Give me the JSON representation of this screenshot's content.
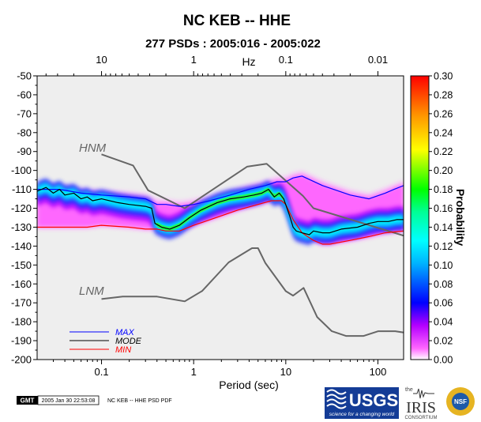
{
  "chart_data": {
    "type": "heatmap",
    "title": "NC KEB -- HHE",
    "subtitle": "277 PSDs : 2005:016 - 2005:022",
    "xlabel": "Period (sec)",
    "x_top_unit": "Hz",
    "ylabel": "",
    "colorbar_label": "Probability",
    "x_scale": "log",
    "xlim": [
      0.02,
      190
    ],
    "ylim": [
      -200,
      -50
    ],
    "x_ticks": [
      0.1,
      1,
      10,
      100
    ],
    "x_tick_labels": [
      "0.1",
      "1",
      "10",
      "100"
    ],
    "x_top_ticks": [
      10,
      1,
      0.1,
      0.01
    ],
    "x_top_tick_labels": [
      "10",
      "1",
      "0.1",
      "0.01"
    ],
    "y_ticks": [
      -50,
      -60,
      -70,
      -80,
      -90,
      -100,
      -110,
      -120,
      -130,
      -140,
      -150,
      -160,
      -170,
      -180,
      -190,
      -200
    ],
    "y_tick_labels": [
      "-50",
      "-60",
      "-70",
      "-80",
      "-90",
      "-100",
      "-110",
      "-120",
      "-130",
      "-140",
      "-150",
      "-160",
      "-170",
      "-180",
      "-190",
      "-200"
    ],
    "colorbar_range": [
      0,
      0.3
    ],
    "colorbar_ticks": [
      0.0,
      0.02,
      0.04,
      0.06,
      0.08,
      0.1,
      0.12,
      0.14,
      0.16,
      0.18,
      0.2,
      0.22,
      0.24,
      0.26,
      0.28,
      0.3
    ],
    "colorbar_tick_labels": [
      "0.00",
      "0.02",
      "0.04",
      "0.06",
      "0.08",
      "0.10",
      "0.12",
      "0.14",
      "0.16",
      "0.18",
      "0.20",
      "0.22",
      "0.24",
      "0.26",
      "0.28",
      "0.30"
    ],
    "colors": {
      "max": "#0000ff",
      "mode": "#000000",
      "min": "#ff0000",
      "noise_models": "#666666",
      "background": "#eeeeee"
    },
    "legend": {
      "placement": "bottom-left",
      "entries": [
        "MAX",
        "MODE",
        "MIN"
      ]
    },
    "reference_labels": {
      "hnm": "HNM",
      "lnm": "LNM"
    },
    "series": [
      {
        "name": "MAX",
        "x": [
          0.02,
          0.035,
          0.06,
          0.1,
          0.2,
          0.3,
          0.4,
          0.5,
          0.7,
          1,
          1.5,
          2.5,
          4,
          6,
          8,
          10,
          12,
          15,
          25,
          50,
          80,
          120,
          150,
          190
        ],
        "y": [
          -110,
          -110,
          -112,
          -113,
          -114,
          -115,
          -118,
          -118,
          -119,
          -118,
          -116,
          -113,
          -110,
          -108,
          -106,
          -106,
          -104,
          -103,
          -108,
          -113,
          -115,
          -112,
          -110,
          -108
        ]
      },
      {
        "name": "MODE",
        "x": [
          0.02,
          0.025,
          0.03,
          0.035,
          0.04,
          0.05,
          0.06,
          0.07,
          0.08,
          0.1,
          0.15,
          0.2,
          0.3,
          0.35,
          0.38,
          0.45,
          0.55,
          0.7,
          0.9,
          1.2,
          1.8,
          2.5,
          3.5,
          4.5,
          5.5,
          6.5,
          7.5,
          8.5,
          9.5,
          11,
          12,
          13,
          15,
          18,
          20,
          25,
          30,
          40,
          60,
          80,
          100,
          130,
          160,
          190
        ],
        "y": [
          -111,
          -109,
          -112,
          -110,
          -113,
          -112,
          -115,
          -114,
          -116,
          -115,
          -117,
          -118,
          -119,
          -120,
          -128,
          -130,
          -131,
          -129,
          -125,
          -121,
          -117,
          -115,
          -114,
          -113,
          -112,
          -110,
          -114,
          -112,
          -115,
          -124,
          -130,
          -132,
          -133,
          -134,
          -132,
          -133,
          -133,
          -131,
          -130,
          -128,
          -127,
          -127,
          -126,
          -126
        ]
      },
      {
        "name": "MIN",
        "x": [
          0.02,
          0.04,
          0.07,
          0.1,
          0.2,
          0.3,
          0.4,
          0.5,
          0.7,
          1,
          2,
          3,
          5,
          7,
          9,
          10,
          12,
          15,
          20,
          25,
          30,
          50,
          80,
          120,
          190
        ],
        "y": [
          -130,
          -130,
          -130,
          -129,
          -130,
          -131,
          -131,
          -132,
          -132,
          -129,
          -124,
          -121,
          -118,
          -116,
          -116,
          -118,
          -126,
          -133,
          -137,
          -139,
          -139,
          -137,
          -135,
          -133,
          -132
        ]
      },
      {
        "name": "HNM",
        "x": [
          0.1,
          0.22,
          0.32,
          0.8,
          3.8,
          6.2,
          7.9,
          15.4,
          20,
          354.8
        ],
        "y": [
          -91.5,
          -97.4,
          -110.5,
          -120,
          -98,
          -96.5,
          -101,
          -113.5,
          -120,
          -138.5
        ]
      },
      {
        "name": "LNM",
        "x": [
          0.1,
          0.17,
          0.4,
          0.8,
          1.24,
          2.4,
          4.3,
          5,
          6,
          10,
          12,
          15.6,
          21.9,
          31.6,
          45,
          70,
          101,
          154,
          328
        ],
        "y": [
          -168,
          -166.7,
          -166.7,
          -169.2,
          -163.7,
          -148.6,
          -141.1,
          -141.1,
          -149,
          -163.8,
          -166.2,
          -162.1,
          -177.5,
          -185,
          -187.5,
          -187.5,
          -185,
          -185,
          -187.5
        ]
      }
    ]
  },
  "footer": {
    "gmt_label": "GMT",
    "timestamp": "2005 Jan 30 22:53:08",
    "caption": "NC KEB -- HHE PSD PDF"
  },
  "logos": {
    "usgs_name": "USGS",
    "usgs_tagline": "science for a changing world",
    "iris_prefix": "the",
    "iris_name": "IRIS",
    "iris_sub": "CONSORTIUM",
    "nsf_name": "NSF"
  }
}
